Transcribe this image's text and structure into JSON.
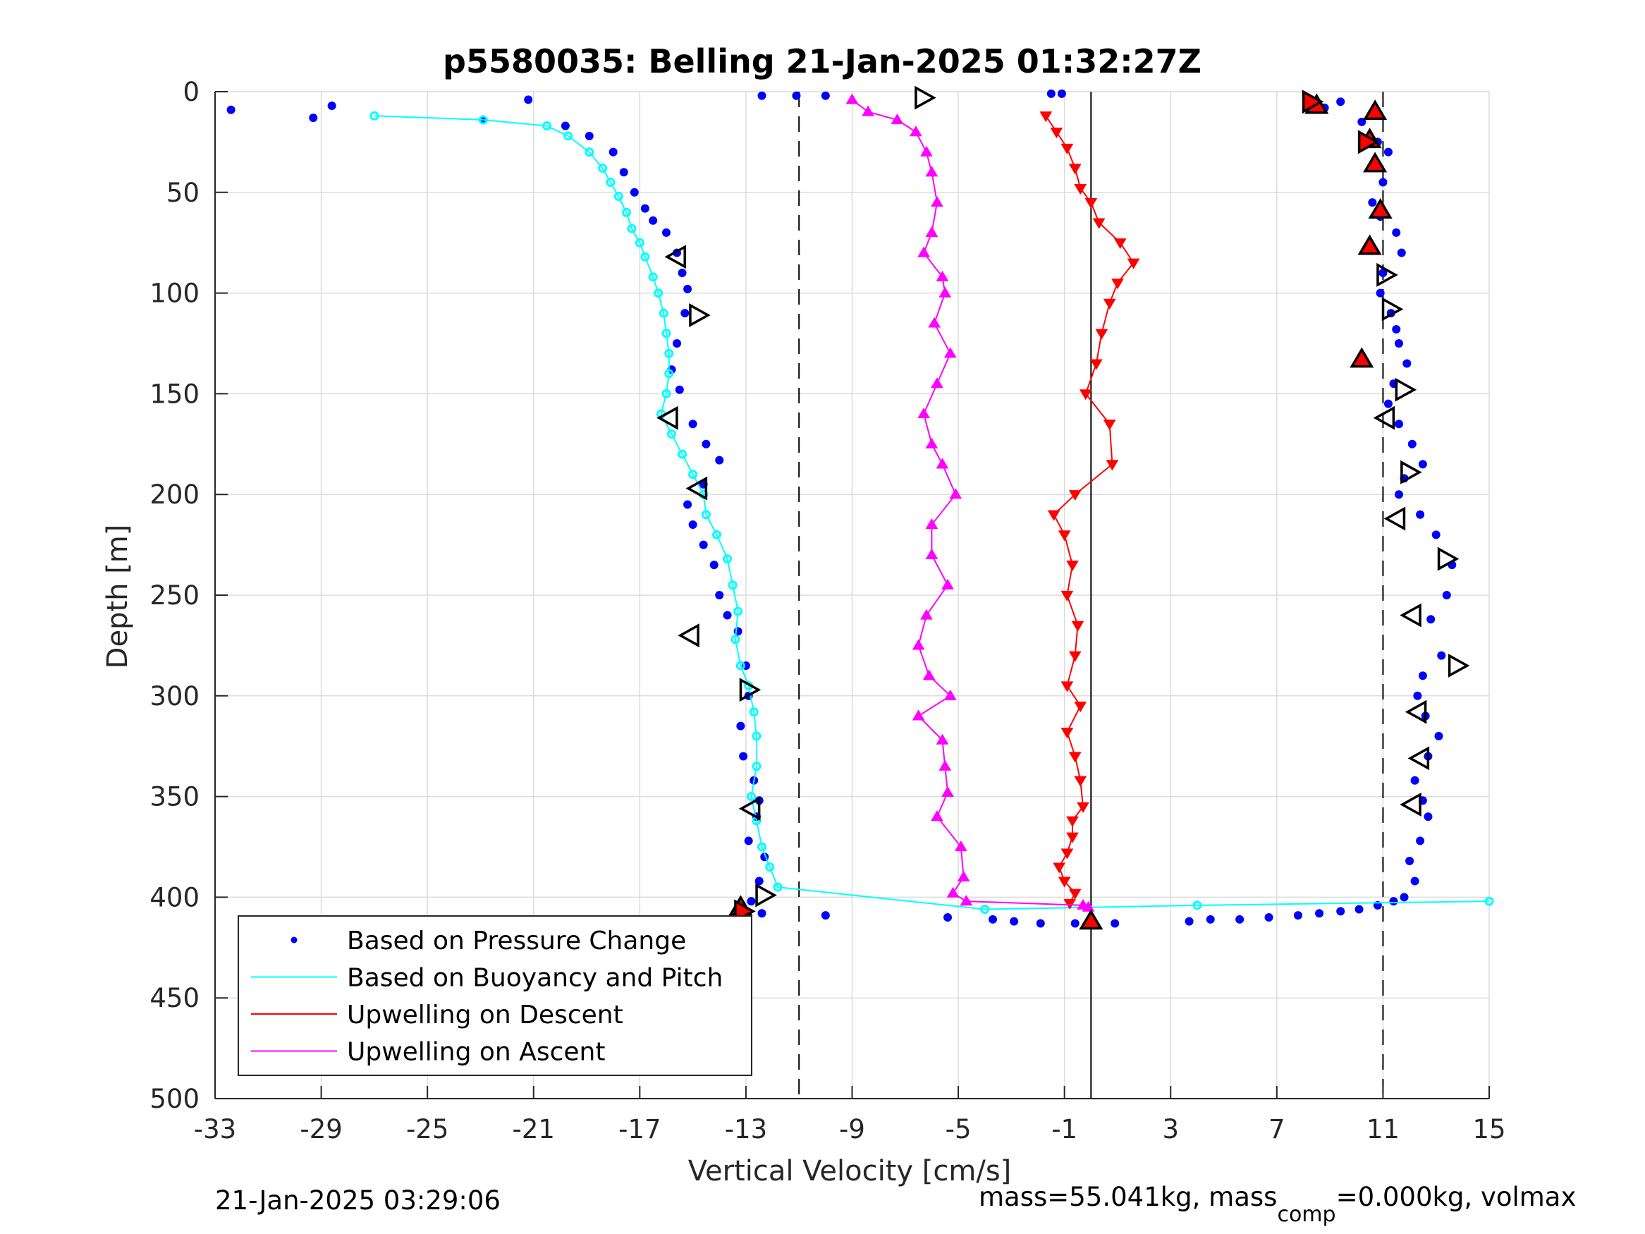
{
  "chart_data": {
    "type": "scatter",
    "title": "p5580035: Belling 21-Jan-2025 01:32:27Z",
    "xlabel": "Vertical Velocity [cm/s]",
    "ylabel": "Depth [m]",
    "xlim": [
      -33,
      15
    ],
    "ylim": [
      500,
      0
    ],
    "y_reversed": true,
    "xticks": [
      -33,
      -29,
      -25,
      -21,
      -17,
      -13,
      -9,
      -5,
      -1,
      3,
      7,
      11,
      15
    ],
    "yticks": [
      0,
      50,
      100,
      150,
      200,
      250,
      300,
      350,
      400,
      450,
      500
    ],
    "grid": true,
    "legend_position": "bottom-left",
    "vertical_lines": [
      {
        "x": -11.0,
        "style": "dashed"
      },
      {
        "x": 0.0,
        "style": "solid"
      },
      {
        "x": 11.0,
        "style": "dashed"
      }
    ],
    "series": [
      {
        "name": "Based on Pressure Change",
        "style": "dots",
        "color": "#0000ff",
        "profiles": [
          {
            "x": [
              -32.4,
              -29.3,
              -28.6,
              -22.9,
              -21.2,
              -19.8,
              -18.9,
              -18.0,
              -17.6,
              -17.2,
              -16.8,
              -16.5,
              -16.0,
              -15.6,
              -15.4,
              -15.2,
              -15.3,
              -15.6,
              -15.8,
              -15.5,
              -15.0,
              -14.5,
              -14.0,
              -14.6,
              -15.2,
              -15.0,
              -14.6,
              -14.2,
              -14.0,
              -13.7,
              -13.3,
              -13.0,
              -12.9,
              -13.2,
              -13.1,
              -12.7,
              -12.5,
              -12.6,
              -12.9,
              -12.3,
              -12.5,
              -12.8,
              -12.4
            ],
            "y": [
              9,
              13,
              7,
              14,
              4,
              17,
              22,
              30,
              40,
              50,
              58,
              64,
              70,
              80,
              90,
              98,
              110,
              125,
              138,
              148,
              165,
              175,
              183,
              195,
              205,
              215,
              225,
              235,
              250,
              260,
              268,
              285,
              300,
              315,
              330,
              342,
              352,
              360,
              372,
              380,
              392,
              402,
              408
            ]
          },
          {
            "x": [
              -10.0,
              -5.4,
              -3.7,
              -2.9,
              -1.9,
              -0.6,
              0.9,
              3.7,
              4.5,
              5.6,
              6.7,
              7.8,
              8.6,
              9.4,
              10.1,
              10.8,
              11.4
            ],
            "y": [
              409,
              410,
              411,
              412,
              413,
              413,
              413,
              412,
              411,
              411,
              410,
              409,
              408,
              407,
              406,
              404,
              402
            ]
          },
          {
            "x": [
              8.3,
              8.8,
              9.4,
              10.2,
              10.8,
              11.2,
              11.0,
              10.6,
              10.9,
              11.5,
              11.7,
              11.0,
              10.9,
              11.3,
              11.5,
              11.6,
              11.9,
              11.4,
              11.2,
              11.6,
              12.1,
              12.5,
              11.8,
              11.6,
              12.4,
              13.0,
              13.6,
              13.4,
              12.8,
              13.2,
              12.5,
              12.3,
              12.6,
              13.1,
              12.7,
              12.2,
              12.5,
              12.7,
              12.4,
              12.0,
              12.2,
              11.8
            ],
            "y": [
              6,
              8,
              5,
              15,
              25,
              30,
              45,
              55,
              62,
              70,
              80,
              90,
              100,
              110,
              118,
              125,
              135,
              145,
              155,
              165,
              175,
              185,
              192,
              200,
              210,
              220,
              235,
              250,
              262,
              280,
              290,
              300,
              310,
              320,
              330,
              342,
              352,
              360,
              372,
              382,
              392,
              400
            ]
          },
          {
            "x": [
              -12.4,
              -10.0,
              -11.1,
              -1.5,
              -1.1
            ],
            "y": [
              2,
              2,
              2,
              1,
              1
            ]
          }
        ]
      },
      {
        "name": "Based on Buoyancy and Pitch",
        "style": "line-dots",
        "color": "#00ffff",
        "x": [
          -27.0,
          -22.9,
          -20.5,
          -19.7,
          -18.9,
          -18.4,
          -18.1,
          -17.8,
          -17.5,
          -17.3,
          -17.0,
          -16.8,
          -16.5,
          -16.3,
          -16.1,
          -16.0,
          -15.9,
          -15.9,
          -16.0,
          -16.2,
          -15.8,
          -15.4,
          -15.0,
          -14.6,
          -14.5,
          -14.1,
          -13.7,
          -13.5,
          -13.3,
          -13.4,
          -13.2,
          -12.9,
          -12.7,
          -12.6,
          -12.6,
          -12.8,
          -12.6,
          -12.4,
          -12.1,
          -11.8,
          -4.0,
          4.0,
          15.0
        ],
        "y": [
          12,
          14,
          17,
          22,
          30,
          38,
          45,
          52,
          60,
          68,
          75,
          82,
          92,
          100,
          110,
          120,
          130,
          140,
          150,
          160,
          170,
          180,
          190,
          200,
          210,
          220,
          232,
          245,
          258,
          272,
          285,
          295,
          308,
          320,
          335,
          350,
          362,
          375,
          385,
          395,
          406,
          404,
          402
        ]
      },
      {
        "name": "Upwelling on Descent",
        "style": "line-triangles-down",
        "color": "#ff0000",
        "x": [
          -1.7,
          -1.3,
          -0.9,
          -0.6,
          -0.4,
          0.0,
          0.3,
          1.1,
          1.6,
          1.0,
          0.7,
          0.4,
          0.2,
          -0.2,
          0.7,
          0.8,
          -0.6,
          -1.4,
          -1.0,
          -0.7,
          -0.9,
          -0.5,
          -0.6,
          -0.9,
          -0.4,
          -0.9,
          -0.6,
          -0.4,
          -0.3,
          -0.7,
          -0.7,
          -0.9,
          -1.2,
          -1.0,
          -0.6,
          -0.8
        ],
        "y": [
          12,
          20,
          28,
          38,
          48,
          55,
          65,
          75,
          85,
          95,
          105,
          120,
          135,
          150,
          165,
          185,
          200,
          210,
          220,
          235,
          250,
          265,
          280,
          295,
          305,
          318,
          330,
          342,
          355,
          362,
          370,
          378,
          385,
          392,
          398,
          403
        ]
      },
      {
        "name": "Upwelling on Ascent",
        "style": "line-triangles-up",
        "color": "#ff00ff",
        "x": [
          -9.0,
          -8.4,
          -7.3,
          -6.6,
          -6.2,
          -6.0,
          -5.8,
          -6.0,
          -6.3,
          -5.6,
          -5.5,
          -5.9,
          -5.3,
          -5.8,
          -6.3,
          -6.0,
          -5.6,
          -5.1,
          -6.0,
          -6.0,
          -5.4,
          -6.2,
          -6.5,
          -6.1,
          -5.3,
          -6.5,
          -5.6,
          -5.5,
          -5.4,
          -5.8,
          -4.9,
          -4.8,
          -5.2,
          -4.7,
          -0.3,
          -0.1
        ],
        "y": [
          4,
          10,
          14,
          20,
          30,
          40,
          55,
          70,
          80,
          92,
          100,
          115,
          130,
          145,
          160,
          175,
          185,
          200,
          215,
          230,
          245,
          260,
          275,
          290,
          300,
          310,
          322,
          335,
          348,
          360,
          375,
          390,
          398,
          402,
          404,
          405
        ]
      }
    ],
    "markers": {
      "open_right": {
        "x": [
          -6.3,
          -14.8,
          -12.9,
          -12.3,
          11.1,
          11.3,
          11.8,
          12.0,
          13.4,
          13.8
        ],
        "y": [
          3,
          111,
          297,
          399,
          91,
          108,
          148,
          189,
          232,
          285
        ]
      },
      "open_left": {
        "x": [
          -15.6,
          -15.9,
          -14.8,
          -15.1,
          -12.8,
          11.1,
          11.5,
          12.1,
          12.3,
          12.4,
          12.1
        ],
        "y": [
          82,
          162,
          197,
          270,
          356,
          162,
          212,
          260,
          308,
          331,
          354
        ]
      },
      "filled_up": {
        "x": [
          8.5,
          10.7,
          10.5,
          10.7,
          10.9,
          10.5,
          10.2,
          -13.2,
          0.0
        ],
        "y": [
          7,
          10,
          24,
          36,
          59,
          77,
          133,
          405,
          412
        ]
      },
      "filled_right": {
        "x": [
          8.3,
          10.4,
          -13.1
        ],
        "y": [
          5,
          25,
          407
        ]
      }
    }
  },
  "footer": {
    "timestamp": "21-Jan-2025 03:29:06",
    "mass_text_part1": "mass=55.041kg, mass",
    "mass_subscript": "comp",
    "mass_text_part2": "=0.000kg, volmax"
  }
}
